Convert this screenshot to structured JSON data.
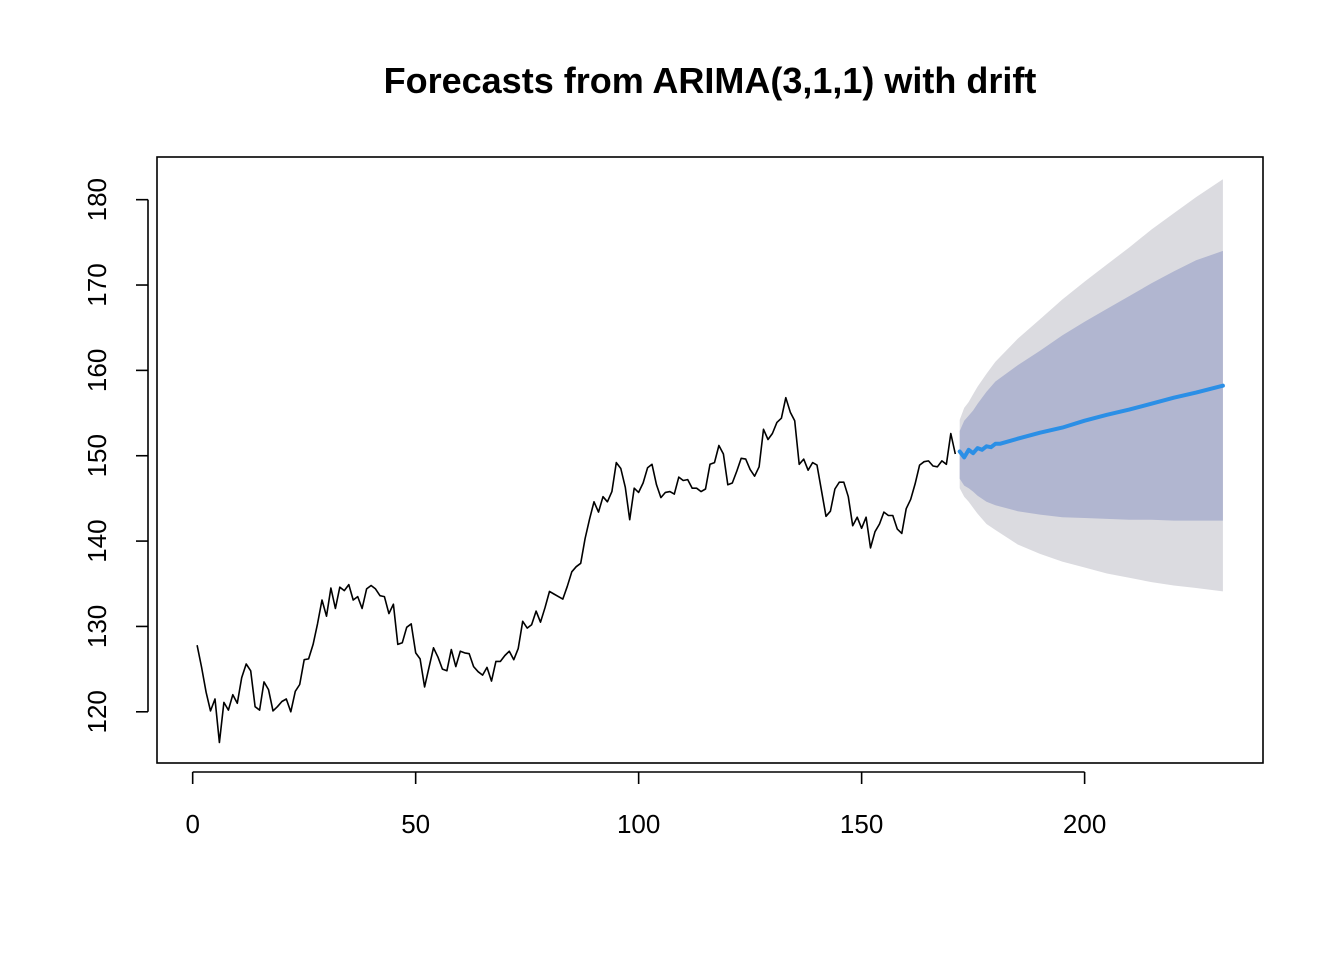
{
  "chart_data": {
    "type": "line",
    "title": "Forecasts from ARIMA(3,1,1) with drift",
    "xlabel": "",
    "ylabel": "",
    "xlim": [
      -8,
      240
    ],
    "ylim": [
      114,
      185
    ],
    "x_ticks": [
      0,
      50,
      100,
      150,
      200
    ],
    "y_ticks": [
      120,
      130,
      140,
      150,
      160,
      170,
      180
    ],
    "grid": false,
    "colors": {
      "history": "#000000",
      "forecast": "#2b8fe6",
      "band_80": "#b1b6d0",
      "band_95": "#dbdbe0"
    },
    "series": [
      {
        "x_start": 1,
        "values": [
          127.8,
          125.2,
          122.3,
          120.1,
          121.5,
          116.4,
          121.1,
          120.2,
          122,
          121,
          124,
          125.6,
          124.8,
          120.6,
          120.2,
          123.5,
          122.6,
          120.1,
          120.6,
          121.2,
          121.5,
          120,
          122.4,
          123.2,
          126.1,
          126.2,
          127.9,
          130.3,
          133.1,
          131.2,
          134.5,
          132.1,
          134.6,
          134.2,
          134.9,
          133.1,
          133.5,
          132.1,
          134.4,
          134.8,
          134.4,
          133.6,
          133.5,
          131.5,
          132.6,
          127.9,
          128.1,
          129.9,
          130.3,
          126.9,
          126.2,
          122.9,
          125.2,
          127.5,
          126.4,
          125,
          124.8,
          127.3,
          125.3,
          127.1,
          126.9,
          126.8,
          125.3,
          124.7,
          124.3,
          125.2,
          123.6,
          125.9,
          125.9,
          126.6,
          127.1,
          126.1,
          127.4,
          130.6,
          129.8,
          130.2,
          131.8,
          130.5,
          132.2,
          134.1,
          133.8,
          133.5,
          133.2,
          134.7,
          136.4,
          137,
          137.4,
          140.3,
          142.6,
          144.6,
          143.4,
          145.2,
          144.6,
          145.8,
          149.2,
          148.5,
          146.3,
          142.5,
          146.2,
          145.7,
          146.8,
          148.6,
          149,
          146.6,
          145.1,
          145.7,
          145.8,
          145.5,
          147.5,
          147.1,
          147.2,
          146.2,
          146.2,
          145.8,
          146.1,
          149,
          149.2,
          151.2,
          150.2,
          146.6,
          146.8,
          148.2,
          149.7,
          149.6,
          148.4,
          147.6,
          148.7,
          153.1,
          151.9,
          152.6,
          153.9,
          154.4,
          156.8,
          155.1,
          154.1,
          149,
          149.6,
          148.3,
          149.2,
          148.9,
          145.9,
          142.9,
          143.5,
          146.1,
          146.9,
          146.9,
          145.2,
          141.8,
          142.8,
          141.5,
          142.8,
          139.2,
          141.1,
          142,
          143.4,
          143,
          143,
          141.4,
          140.9,
          143.8,
          144.9,
          146.7,
          148.9,
          149.3,
          149.4,
          148.8,
          148.7,
          149.4,
          149,
          152.6,
          150.2
        ]
      },
      {
        "name": "",
        "x": [
          172,
          173,
          174,
          175,
          176,
          177,
          178,
          179,
          180,
          181,
          185,
          190,
          195,
          200,
          205,
          210,
          215,
          220,
          225,
          231
        ],
        "values": [
          150.5,
          149.8,
          150.7,
          150.3,
          150.9,
          150.7,
          151.1,
          151.0,
          151.4,
          151.4,
          152.0,
          152.7,
          153.3,
          154.1,
          154.8,
          155.4,
          156.1,
          156.8,
          157.4,
          158.2
        ]
      }
    ],
    "bands": [
      {
        "level": "95",
        "x": [
          172,
          173,
          174,
          175,
          176,
          178,
          180,
          185,
          190,
          195,
          200,
          205,
          210,
          215,
          220,
          225,
          231
        ],
        "lower": [
          146.2,
          145.2,
          144.6,
          143.9,
          143.2,
          142.0,
          141.3,
          139.6,
          138.5,
          137.6,
          136.9,
          136.2,
          135.7,
          135.2,
          134.8,
          134.5,
          134.1
        ],
        "upper": [
          154.2,
          155.6,
          156.3,
          157.2,
          158.1,
          159.6,
          161.0,
          163.7,
          166.0,
          168.3,
          170.4,
          172.4,
          174.4,
          176.5,
          178.4,
          180.3,
          182.4
        ]
      },
      {
        "level": "80",
        "x": [
          172,
          173,
          174,
          175,
          176,
          178,
          180,
          185,
          190,
          195,
          200,
          205,
          210,
          215,
          220,
          225,
          231
        ],
        "lower": [
          147.3,
          146.5,
          146.2,
          145.8,
          145.3,
          144.6,
          144.2,
          143.5,
          143.1,
          142.8,
          142.7,
          142.6,
          142.5,
          142.5,
          142.4,
          142.4,
          142.4
        ],
        "upper": [
          152.9,
          154.1,
          154.7,
          155.3,
          156.1,
          157.5,
          158.7,
          160.6,
          162.3,
          164.1,
          165.7,
          167.2,
          168.7,
          170.2,
          171.6,
          172.9,
          174.0
        ]
      }
    ]
  }
}
